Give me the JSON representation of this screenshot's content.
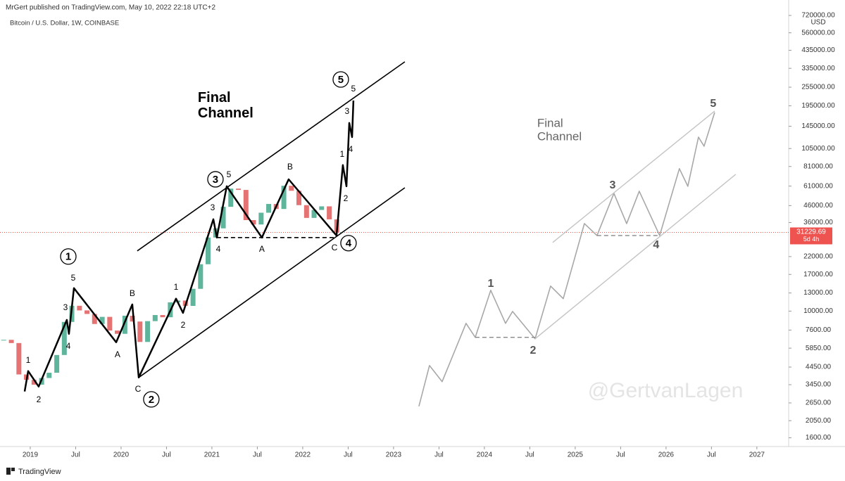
{
  "chart_data": {
    "type": "candlestick",
    "subtitle": "MrGert published on TradingView.com, May 10, 2022 22:18 UTC+2",
    "title": "Bitcoin / U.S. Dollar, 1W, COINBASE",
    "y_unit": "USD",
    "log_y": true,
    "grid": false,
    "xlim": [
      2018.667,
      2027.35
    ],
    "ylim": [
      1410,
      900000
    ],
    "xticks": [
      2019,
      {
        "value": 2019.5,
        "label": "Jul"
      },
      2020,
      {
        "value": 2020.5,
        "label": "Jul"
      },
      2021,
      {
        "value": 2021.5,
        "label": "Jul"
      },
      2022,
      {
        "value": 2022.5,
        "label": "Jul"
      },
      2023,
      {
        "value": 2023.5,
        "label": "Jul"
      },
      2024,
      {
        "value": 2024.5,
        "label": "Jul"
      },
      2025,
      {
        "value": 2025.5,
        "label": "Jul"
      },
      2026,
      {
        "value": 2026.5,
        "label": "Jul"
      },
      2027
    ],
    "yticks": [
      {
        "value": 720000,
        "label": "720000.00"
      },
      {
        "value": 560000,
        "label": "560000.00"
      },
      {
        "value": 435000,
        "label": "435000.00"
      },
      {
        "value": 335000,
        "label": "335000.00"
      },
      {
        "value": 255000,
        "label": "255000.00"
      },
      {
        "value": 195000,
        "label": "195000.00"
      },
      {
        "value": 145000,
        "label": "145000.00"
      },
      {
        "value": 105000,
        "label": "105000.00"
      },
      {
        "value": 81000,
        "label": "81000.00"
      },
      {
        "value": 61000,
        "label": "61000.00"
      },
      {
        "value": 46000,
        "label": "46000.00"
      },
      {
        "value": 36000,
        "label": "36000.00"
      },
      {
        "value": 22000,
        "label": "22000.00"
      },
      {
        "value": 17000,
        "label": "17000.00"
      },
      {
        "value": 13000,
        "label": "13000.00"
      },
      {
        "value": 10000,
        "label": "10000.00"
      },
      {
        "value": 7600,
        "label": "7600.00"
      },
      {
        "value": 5850,
        "label": "5850.00"
      },
      {
        "value": 4450,
        "label": "4450.00"
      },
      {
        "value": 3450,
        "label": "3450.00"
      },
      {
        "value": 2650,
        "label": "2650.00"
      },
      {
        "value": 2050,
        "label": "2050.00"
      },
      {
        "value": 1600,
        "label": "1600.00"
      }
    ],
    "last_price": 31229.69,
    "countdown": "5d 4h",
    "up_color": "#5fb49c",
    "down_color": "#e57373",
    "x": [
      2018.708,
      2018.792,
      2018.875,
      2018.958,
      2019.042,
      2019.125,
      2019.208,
      2019.292,
      2019.375,
      2019.458,
      2019.542,
      2019.625,
      2019.708,
      2019.792,
      2019.875,
      2019.958,
      2020.042,
      2020.125,
      2020.208,
      2020.292,
      2020.375,
      2020.458,
      2020.542,
      2020.625,
      2020.708,
      2020.792,
      2020.875,
      2020.958,
      2021.042,
      2021.125,
      2021.208,
      2021.292,
      2021.375,
      2021.458,
      2021.542,
      2021.625,
      2021.708,
      2021.792,
      2021.875,
      2021.958,
      2022.042,
      2022.125,
      2022.208,
      2022.292,
      2022.375
    ],
    "values": [
      6600,
      6300,
      4000,
      3700,
      3450,
      3800,
      4100,
      5300,
      8550,
      10800,
      10100,
      9600,
      8300,
      9200,
      7550,
      7200,
      9350,
      8600,
      6400,
      8650,
      9450,
      9150,
      11350,
      11650,
      10780,
      13800,
      19700,
      29000,
      33100,
      45200,
      58800,
      57700,
      37300,
      35000,
      41500,
      47100,
      43800,
      61300,
      57000,
      46300,
      38500,
      43200,
      45500,
      37700,
      31230
    ],
    "lines": [
      {
        "color": "#000000",
        "width": 2.5,
        "dash": false,
        "x": [
          2018.938,
          2018.977,
          2019.093,
          2019.403,
          2019.426,
          2019.481,
          2019.946,
          2020.124,
          2020.194,
          2020.605,
          2020.682,
          2021.016,
          2021.054,
          2021.163,
          2021.55,
          2021.845,
          2022.372,
          2022.442,
          2022.481,
          2022.512,
          2022.543,
          2022.558
        ],
        "y": [
          3126,
          4200,
          3357,
          8810,
          7195,
          13930,
          6370,
          11020,
          3830,
          11970,
          9750,
          37760,
          28970,
          60810,
          28970,
          67300,
          29850,
          82600,
          60810,
          152000,
          123900,
          210400
        ]
      },
      {
        "color": "#000000",
        "width": 1.6,
        "dash": false,
        "x": [
          2020.178,
          2023.124
        ],
        "y": [
          23880,
          368000
        ]
      },
      {
        "color": "#000000",
        "width": 1.6,
        "dash": false,
        "x": [
          2020.194,
          2023.124
        ],
        "y": [
          3830,
          59570
        ]
      },
      {
        "color": "#000000",
        "width": 1.6,
        "dash": true,
        "x": [
          2021.054,
          2022.372
        ],
        "y": [
          28970,
          28970
        ]
      },
      {
        "color": "#a8a8a8",
        "width": 1.6,
        "dash": false,
        "x": [
          2023.279,
          2023.395,
          2023.535,
          2023.798,
          2023.899,
          2024.07,
          2024.233,
          2024.31,
          2024.558,
          2024.729,
          2024.868,
          2025.101,
          2025.24,
          2025.426,
          2025.566,
          2025.705,
          2025.93,
          2026.147,
          2026.24,
          2026.357,
          2026.419,
          2026.535
        ],
        "y": [
          2523,
          4550,
          3605,
          8375,
          6840,
          13520,
          8375,
          9950,
          6700,
          14360,
          11970,
          35480,
          29850,
          54950,
          35480,
          56620,
          29850,
          78500,
          60810,
          123900,
          108600,
          177000
        ]
      },
      {
        "color": "#c4c4c4",
        "width": 1.4,
        "dash": false,
        "x": [
          2024.752,
          2026.535
        ],
        "y": [
          26980,
          180700
        ]
      },
      {
        "color": "#c4c4c4",
        "width": 1.4,
        "dash": false,
        "x": [
          2024.558,
          2026.767
        ],
        "y": [
          6700,
          72280
        ]
      },
      {
        "color": "#888888",
        "width": 1.4,
        "dash": true,
        "x": [
          2023.899,
          2024.558
        ],
        "y": [
          6840,
          6840
        ]
      },
      {
        "color": "#888888",
        "width": 1.4,
        "dash": true,
        "x": [
          2025.24,
          2025.93
        ],
        "y": [
          29850,
          29850
        ]
      }
    ],
    "labels": [
      {
        "text": "1",
        "x": 2019.419,
        "y": 22030,
        "circled": true,
        "color": "#000000"
      },
      {
        "text": "5",
        "x": 2019.473,
        "y": 16220,
        "circled": false,
        "color": "#000000"
      },
      {
        "text": "3",
        "x": 2019.388,
        "y": 10590,
        "circled": false,
        "color": "#000000"
      },
      {
        "text": "4",
        "x": 2019.419,
        "y": 6050,
        "circled": false,
        "color": "#000000"
      },
      {
        "text": "1",
        "x": 2018.977,
        "y": 4940,
        "circled": false,
        "color": "#000000"
      },
      {
        "text": "2",
        "x": 2019.093,
        "y": 2790,
        "circled": false,
        "color": "#000000"
      },
      {
        "text": "B",
        "x": 2020.124,
        "y": 12970,
        "circled": false,
        "color": "#000000"
      },
      {
        "text": "A",
        "x": 2019.961,
        "y": 5360,
        "circled": false,
        "color": "#000000"
      },
      {
        "text": "C",
        "x": 2020.186,
        "y": 3260,
        "circled": false,
        "color": "#000000"
      },
      {
        "text": "2",
        "x": 2020.333,
        "y": 2790,
        "circled": true,
        "color": "#000000"
      },
      {
        "text": "1",
        "x": 2020.605,
        "y": 14220,
        "circled": false,
        "color": "#000000"
      },
      {
        "text": "2",
        "x": 2020.682,
        "y": 8200,
        "circled": false,
        "color": "#000000"
      },
      {
        "text": "3",
        "x": 2021.008,
        "y": 44870,
        "circled": false,
        "color": "#000000"
      },
      {
        "text": "3",
        "x": 2021.039,
        "y": 67300,
        "circled": true,
        "color": "#000000"
      },
      {
        "text": "5",
        "x": 2021.186,
        "y": 72280,
        "circled": false,
        "color": "#000000"
      },
      {
        "text": "4",
        "x": 2021.07,
        "y": 24600,
        "circled": false,
        "color": "#000000"
      },
      {
        "text": "A",
        "x": 2021.55,
        "y": 24600,
        "circled": false,
        "color": "#000000"
      },
      {
        "text": "B",
        "x": 2021.86,
        "y": 80900,
        "circled": false,
        "color": "#000000"
      },
      {
        "text": "C",
        "x": 2022.349,
        "y": 25120,
        "circled": false,
        "color": "#000000"
      },
      {
        "text": "4",
        "x": 2022.504,
        "y": 26730,
        "circled": true,
        "color": "#000000"
      },
      {
        "text": "2",
        "x": 2022.473,
        "y": 51170,
        "circled": false,
        "color": "#000000"
      },
      {
        "text": "1",
        "x": 2022.434,
        "y": 97000,
        "circled": false,
        "color": "#000000"
      },
      {
        "text": "4",
        "x": 2022.527,
        "y": 104200,
        "circled": false,
        "color": "#000000"
      },
      {
        "text": "3",
        "x": 2022.488,
        "y": 180700,
        "circled": false,
        "color": "#000000"
      },
      {
        "text": "5",
        "x": 2022.558,
        "y": 250000,
        "circled": false,
        "color": "#000000"
      },
      {
        "text": "5",
        "x": 2022.419,
        "y": 285100,
        "circled": true,
        "color": "#000000"
      },
      {
        "text": "1",
        "x": 2024.07,
        "y": 14960,
        "circled": false,
        "color": "#555555"
      },
      {
        "text": "2",
        "x": 2024.535,
        "y": 5690,
        "circled": false,
        "color": "#555555"
      },
      {
        "text": "3",
        "x": 2025.411,
        "y": 62090,
        "circled": false,
        "color": "#555555"
      },
      {
        "text": "4",
        "x": 2025.891,
        "y": 26180,
        "circled": false,
        "color": "#555555"
      },
      {
        "text": "5",
        "x": 2026.519,
        "y": 201800,
        "circled": false,
        "color": "#555555"
      }
    ],
    "annotations": [
      {
        "lines": [
          "Final",
          "Channel"
        ],
        "x": 2020.845,
        "y": 216800,
        "color": "#000000",
        "bold": true
      },
      {
        "lines": [
          "Final",
          "Channel"
        ],
        "x": 2024.581,
        "y": 150300,
        "color": "#666666",
        "bold": false
      }
    ],
    "watermark": "@GertvanLagen",
    "brand": "TradingView"
  }
}
